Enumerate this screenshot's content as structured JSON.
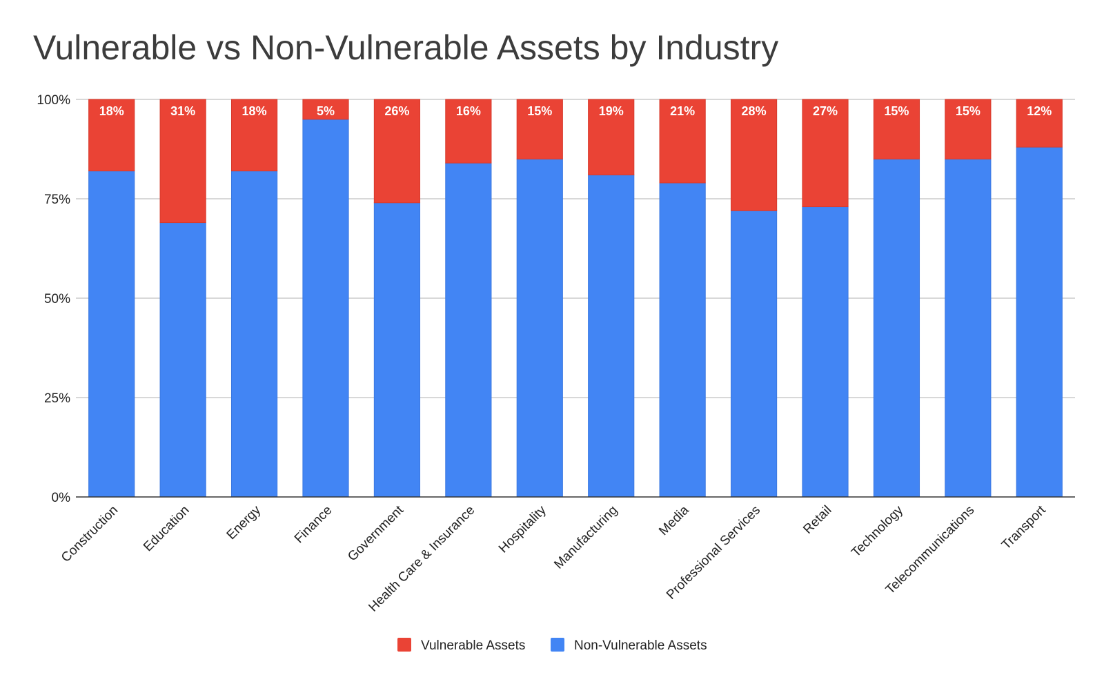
{
  "chart_data": {
    "type": "bar",
    "stacked": true,
    "title": "Vulnerable vs Non-Vulnerable Assets by Industry",
    "xlabel": "",
    "ylabel": "",
    "ylim": [
      0,
      100
    ],
    "y_ticks": [
      "0%",
      "25%",
      "50%",
      "75%",
      "100%"
    ],
    "y_tick_values": [
      0,
      25,
      50,
      75,
      100
    ],
    "grid": true,
    "legend_position": "bottom",
    "categories": [
      "Construction",
      "Education",
      "Energy",
      "Finance",
      "Government",
      "Health Care & Insurance",
      "Hospitality",
      "Manufacturing",
      "Media",
      "Professional Services",
      "Retail",
      "Technology",
      "Telecommunications",
      "Transport"
    ],
    "series": [
      {
        "name": "Non-Vulnerable Assets",
        "color": "#4285f4",
        "values": [
          82,
          69,
          82,
          95,
          74,
          84,
          85,
          81,
          79,
          72,
          73,
          85,
          85,
          88
        ]
      },
      {
        "name": "Vulnerable Assets",
        "color": "#ea4335",
        "values": [
          18,
          31,
          18,
          5,
          26,
          16,
          15,
          19,
          21,
          28,
          27,
          15,
          15,
          12
        ],
        "data_labels": [
          "18%",
          "31%",
          "18%",
          "5%",
          "26%",
          "16%",
          "15%",
          "19%",
          "21%",
          "28%",
          "27%",
          "15%",
          "15%",
          "12%"
        ]
      }
    ],
    "legend": [
      {
        "name": "Vulnerable Assets",
        "color": "#ea4335"
      },
      {
        "name": "Non-Vulnerable Assets",
        "color": "#4285f4"
      }
    ]
  }
}
